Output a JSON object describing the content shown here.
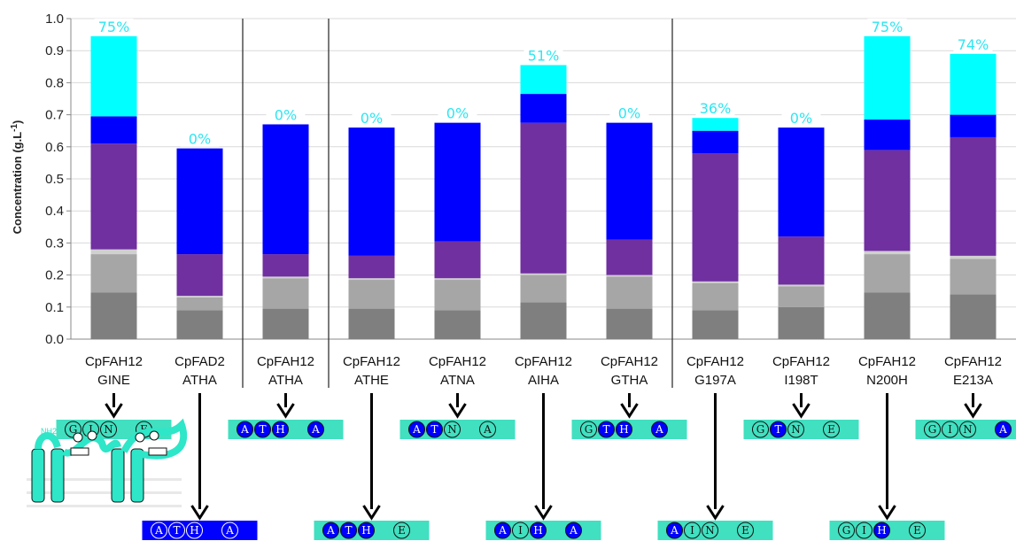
{
  "chart_data": {
    "type": "bar",
    "stacked": true,
    "ylabel": "Concentration (g.L",
    "ylabel_sup": "-1",
    "ylabel_end": ")",
    "ylim": [
      0,
      1.0
    ],
    "yticks": [
      "0.0",
      "0.1",
      "0.2",
      "0.3",
      "0.4",
      "0.5",
      "0.6",
      "0.7",
      "0.8",
      "0.9",
      "1.0"
    ],
    "grid": true,
    "categories": [
      {
        "line1": "CpFAH12",
        "line2": "GINE"
      },
      {
        "line1": "CpFAD2",
        "line2": "ATHA"
      },
      {
        "line1": "CpFAH12",
        "line2": "ATHA"
      },
      {
        "line1": "CpFAH12",
        "line2": "ATHE"
      },
      {
        "line1": "CpFAH12",
        "line2": "ATNA"
      },
      {
        "line1": "CpFAH12",
        "line2": "AIHA"
      },
      {
        "line1": "CpFAH12",
        "line2": "GTHA"
      },
      {
        "line1": "CpFAH12",
        "line2": "G197A"
      },
      {
        "line1": "CpFAH12",
        "line2": "I198T"
      },
      {
        "line1": "CpFAH12",
        "line2": "N200H"
      },
      {
        "line1": "CpFAH12",
        "line2": "E213A"
      }
    ],
    "series_colors": [
      "#7f7f7f",
      "#a6a6a6",
      "#d0d0d0",
      "#7030a0",
      "#0000ff",
      "#00ffff"
    ],
    "stacks": [
      [
        0.145,
        0.12,
        0.015,
        0.33,
        0.085,
        0.25
      ],
      [
        0.09,
        0.04,
        0.005,
        0.13,
        0.33,
        0.0
      ],
      [
        0.095,
        0.095,
        0.005,
        0.07,
        0.405,
        0.0
      ],
      [
        0.095,
        0.09,
        0.005,
        0.07,
        0.4,
        0.0
      ],
      [
        0.09,
        0.095,
        0.005,
        0.115,
        0.37,
        0.0
      ],
      [
        0.115,
        0.085,
        0.005,
        0.47,
        0.09,
        0.09
      ],
      [
        0.095,
        0.1,
        0.005,
        0.11,
        0.365,
        0.0
      ],
      [
        0.09,
        0.085,
        0.005,
        0.4,
        0.07,
        0.04
      ],
      [
        0.1,
        0.065,
        0.005,
        0.15,
        0.34,
        0.0
      ],
      [
        0.145,
        0.12,
        0.01,
        0.315,
        0.095,
        0.26
      ],
      [
        0.14,
        0.11,
        0.01,
        0.37,
        0.07,
        0.19
      ]
    ],
    "percent_labels": [
      "75%",
      "0%",
      "0%",
      "0%",
      "0%",
      "51%",
      "0%",
      "36%",
      "0%",
      "75%",
      "74%"
    ],
    "group_dividers_after": [
      1,
      2,
      6
    ]
  },
  "motifs_top": [
    {
      "cat": 0,
      "letters": [
        "G",
        "I",
        "N",
        "E"
      ],
      "filled": [
        false,
        false,
        false,
        false
      ]
    },
    {
      "cat": 2,
      "letters": [
        "A",
        "T",
        "H",
        "A"
      ],
      "filled": [
        true,
        true,
        true,
        true
      ]
    },
    {
      "cat": 4,
      "letters": [
        "A",
        "T",
        "N",
        "A"
      ],
      "filled": [
        true,
        true,
        false,
        false
      ]
    },
    {
      "cat": 6,
      "letters": [
        "G",
        "T",
        "H",
        "A"
      ],
      "filled": [
        false,
        true,
        true,
        true
      ]
    },
    {
      "cat": 8,
      "letters": [
        "G",
        "T",
        "N",
        "E"
      ],
      "filled": [
        false,
        true,
        false,
        false
      ]
    },
    {
      "cat": 10,
      "letters": [
        "G",
        "I",
        "N",
        "A"
      ],
      "filled": [
        false,
        false,
        false,
        true
      ]
    }
  ],
  "motifs_bottom": [
    {
      "cat": 1,
      "letters": [
        "A",
        "T",
        "H",
        "A"
      ],
      "filled": [
        false,
        false,
        false,
        false
      ],
      "dark": true
    },
    {
      "cat": 3,
      "letters": [
        "A",
        "T",
        "H",
        "E"
      ],
      "filled": [
        true,
        true,
        true,
        false
      ]
    },
    {
      "cat": 5,
      "letters": [
        "A",
        "I",
        "H",
        "A"
      ],
      "filled": [
        true,
        false,
        true,
        true
      ]
    },
    {
      "cat": 7,
      "letters": [
        "A",
        "I",
        "N",
        "E"
      ],
      "filled": [
        true,
        false,
        false,
        false
      ]
    },
    {
      "cat": 9,
      "letters": [
        "G",
        "I",
        "H",
        "E"
      ],
      "filled": [
        false,
        false,
        true,
        false
      ]
    }
  ],
  "schematic": {
    "label": "NH2"
  },
  "colors": {
    "motif_bg": "#40e0c0",
    "motif_dark_bg": "#0000ff",
    "residue_fill": "#0000ff",
    "percent": "#2ee6f2"
  }
}
